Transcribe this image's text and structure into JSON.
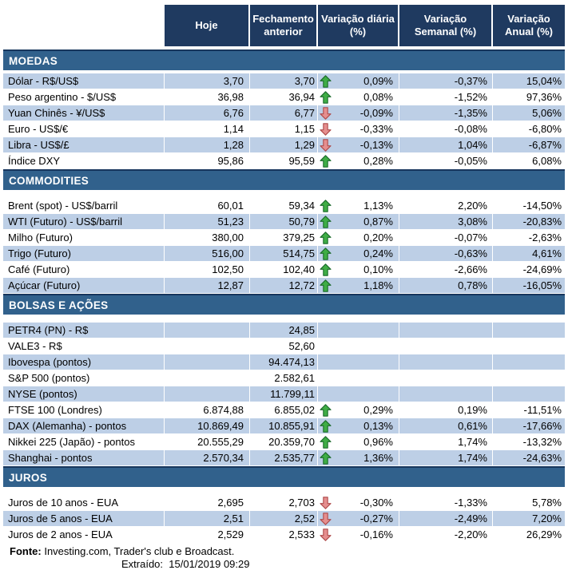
{
  "header": {
    "columns": [
      "Hoje",
      "Fechamento anterior",
      "Variação diária (%)",
      "Variação Semanal (%)",
      "Variação Anual (%)"
    ]
  },
  "colors": {
    "header_bg": "#1F3A60",
    "section_bg": "#31618C",
    "section_border_top": "#17365D",
    "row_stripe": "#BDCFE6",
    "arrow_up_fill": "#3FAD45",
    "arrow_up_border": "#1C6B2C",
    "arrow_down_fill": "#E58E8E",
    "arrow_down_border": "#AE4A4A"
  },
  "sections": [
    {
      "title": "MOEDAS",
      "rows": [
        {
          "label": "Dólar - R$/US$",
          "hoje": "3,70",
          "fechamento": "3,70",
          "arrow": "up",
          "var_diaria": "0,09%",
          "var_semanal": "-0,37%",
          "var_anual": "15,04%",
          "shaded": true
        },
        {
          "label": "Peso argentino - $/US$",
          "hoje": "36,98",
          "fechamento": "36,94",
          "arrow": "up",
          "var_diaria": "0,08%",
          "var_semanal": "-1,52%",
          "var_anual": "97,36%",
          "shaded": false
        },
        {
          "label": "Yuan Chinês - ¥/US$",
          "hoje": "6,76",
          "fechamento": "6,77",
          "arrow": "down",
          "var_diaria": "-0,09%",
          "var_semanal": "-1,35%",
          "var_anual": "5,06%",
          "shaded": true
        },
        {
          "label": "Euro - US$/€",
          "hoje": "1,14",
          "fechamento": "1,15",
          "arrow": "down",
          "var_diaria": "-0,33%",
          "var_semanal": "-0,08%",
          "var_anual": "-6,80%",
          "shaded": false
        },
        {
          "label": "Libra - US$/£",
          "hoje": "1,28",
          "fechamento": "1,29",
          "arrow": "down",
          "var_diaria": "-0,13%",
          "var_semanal": "1,04%",
          "var_anual": "-6,87%",
          "shaded": true
        },
        {
          "label": "Índice DXY",
          "hoje": "95,86",
          "fechamento": "95,59",
          "arrow": "up",
          "var_diaria": "0,28%",
          "var_semanal": "-0,05%",
          "var_anual": "6,08%",
          "shaded": false
        }
      ]
    },
    {
      "title": "COMMODITIES",
      "rows": [
        {
          "label": "Brent (spot) - US$/barril",
          "hoje": "60,01",
          "fechamento": "59,34",
          "arrow": "up",
          "var_diaria": "1,13%",
          "var_semanal": "2,20%",
          "var_anual": "-14,50%",
          "shaded": false
        },
        {
          "label": "WTI (Futuro) - US$/barril",
          "hoje": "51,23",
          "fechamento": "50,79",
          "arrow": "up",
          "var_diaria": "0,87%",
          "var_semanal": "3,08%",
          "var_anual": "-20,83%",
          "shaded": true
        },
        {
          "label": "Milho (Futuro)",
          "hoje": "380,00",
          "fechamento": "379,25",
          "arrow": "up",
          "var_diaria": "0,20%",
          "var_semanal": "-0,07%",
          "var_anual": "-2,63%",
          "shaded": false
        },
        {
          "label": "Trigo (Futuro)",
          "hoje": "516,00",
          "fechamento": "514,75",
          "arrow": "up",
          "var_diaria": "0,24%",
          "var_semanal": "-0,63%",
          "var_anual": "4,61%",
          "shaded": true
        },
        {
          "label": "Café (Futuro)",
          "hoje": "102,50",
          "fechamento": "102,40",
          "arrow": "up",
          "var_diaria": "0,10%",
          "var_semanal": "-2,66%",
          "var_anual": "-24,69%",
          "shaded": false
        },
        {
          "label": "Açúcar (Futuro)",
          "hoje": "12,87",
          "fechamento": "12,72",
          "arrow": "up",
          "var_diaria": "1,18%",
          "var_semanal": "0,78%",
          "var_anual": "-16,05%",
          "shaded": true
        }
      ]
    },
    {
      "title": "BOLSAS E AÇÕES",
      "rows": [
        {
          "label": "PETR4 (PN) - R$",
          "hoje": "",
          "fechamento": "24,85",
          "arrow": "",
          "var_diaria": "",
          "var_semanal": "",
          "var_anual": "",
          "shaded": true
        },
        {
          "label": "VALE3 - R$",
          "hoje": "",
          "fechamento": "52,60",
          "arrow": "",
          "var_diaria": "",
          "var_semanal": "",
          "var_anual": "",
          "shaded": false
        },
        {
          "label": "Ibovespa (pontos)",
          "hoje": "",
          "fechamento": "94.474,13",
          "arrow": "",
          "var_diaria": "",
          "var_semanal": "",
          "var_anual": "",
          "shaded": true
        },
        {
          "label": "S&P 500 (pontos)",
          "hoje": "",
          "fechamento": "2.582,61",
          "arrow": "",
          "var_diaria": "",
          "var_semanal": "",
          "var_anual": "",
          "shaded": false
        },
        {
          "label": "NYSE (pontos)",
          "hoje": "",
          "fechamento": "11.799,11",
          "arrow": "",
          "var_diaria": "",
          "var_semanal": "",
          "var_anual": "",
          "shaded": true
        },
        {
          "label": "FTSE 100 (Londres)",
          "hoje": "6.874,88",
          "fechamento": "6.855,02",
          "arrow": "up",
          "var_diaria": "0,29%",
          "var_semanal": "0,19%",
          "var_anual": "-11,51%",
          "shaded": false
        },
        {
          "label": "DAX (Alemanha) - pontos",
          "hoje": "10.869,49",
          "fechamento": "10.855,91",
          "arrow": "up",
          "var_diaria": "0,13%",
          "var_semanal": "0,61%",
          "var_anual": "-17,66%",
          "shaded": true
        },
        {
          "label": "Nikkei 225 (Japão) - pontos",
          "hoje": "20.555,29",
          "fechamento": "20.359,70",
          "arrow": "up",
          "var_diaria": "0,96%",
          "var_semanal": "1,74%",
          "var_anual": "-13,32%",
          "shaded": false
        },
        {
          "label": "Shanghai - pontos",
          "hoje": "2.570,34",
          "fechamento": "2.535,77",
          "arrow": "up",
          "var_diaria": "1,36%",
          "var_semanal": "1,74%",
          "var_anual": "-24,63%",
          "shaded": true
        }
      ]
    },
    {
      "title": "JUROS",
      "rows": [
        {
          "label": "Juros de 10 anos - EUA",
          "hoje": "2,695",
          "fechamento": "2,703",
          "arrow": "down",
          "var_diaria": "-0,30%",
          "var_semanal": "-1,33%",
          "var_anual": "5,78%",
          "shaded": false
        },
        {
          "label": "Juros de 5 anos - EUA",
          "hoje": "2,51",
          "fechamento": "2,52",
          "arrow": "down",
          "var_diaria": "-0,27%",
          "var_semanal": "-2,49%",
          "var_anual": "7,20%",
          "shaded": true
        },
        {
          "label": "Juros de 2 anos - EUA",
          "hoje": "2,529",
          "fechamento": "2,533",
          "arrow": "down",
          "var_diaria": "-0,16%",
          "var_semanal": "-2,20%",
          "var_anual": "26,29%",
          "shaded": false
        }
      ]
    }
  ],
  "footer": {
    "fonte_label": "Fonte:",
    "fonte_text": "Investing.com, Trader's club e Broadcast.",
    "extraido_label": "Extraído:",
    "extraido_value": "15/01/2019 09:29"
  }
}
